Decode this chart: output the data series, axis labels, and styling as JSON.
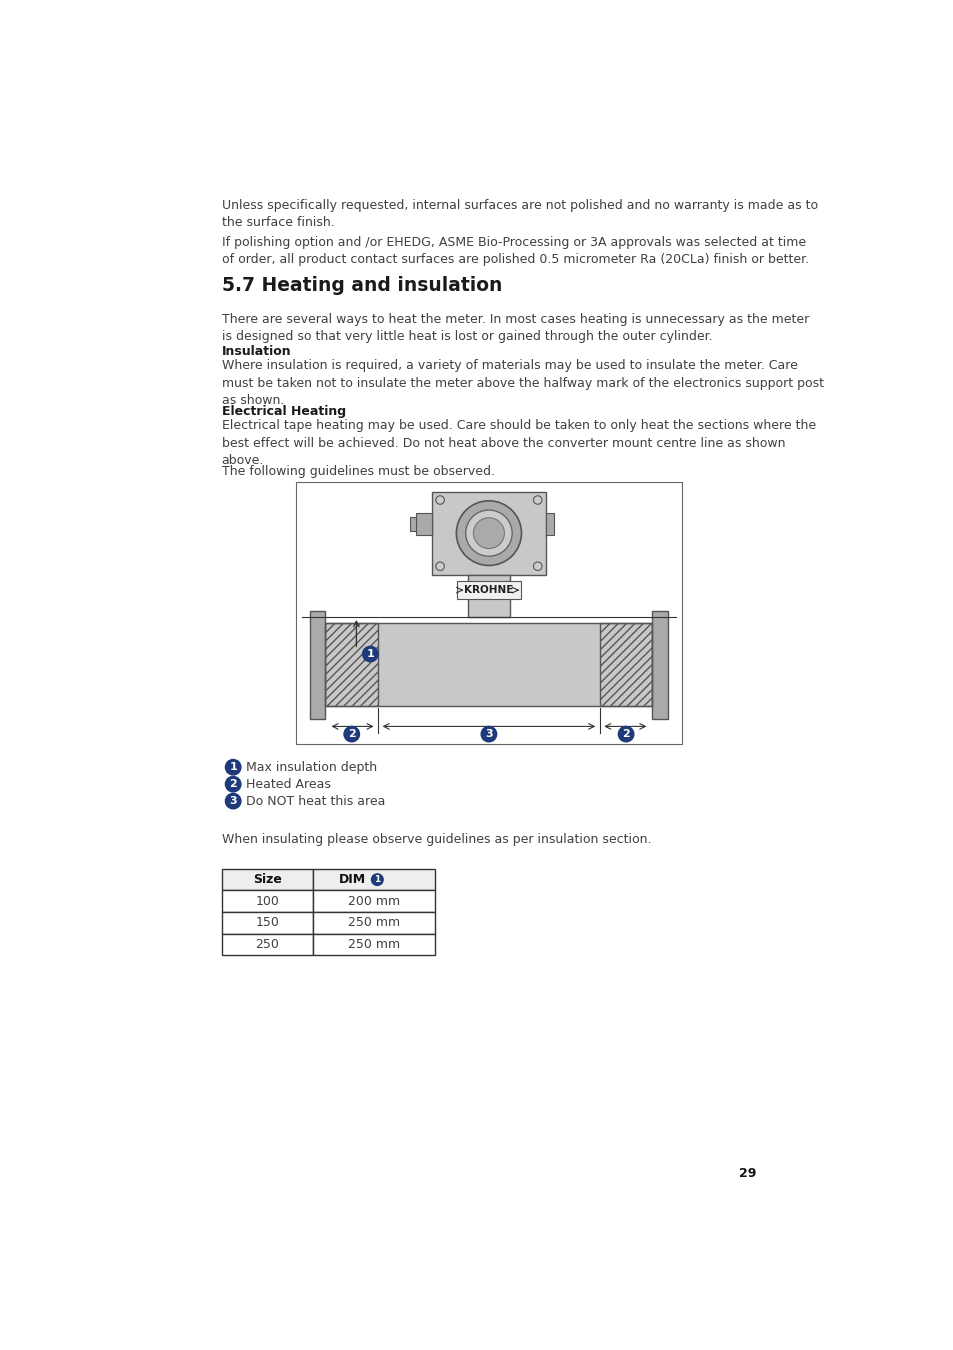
{
  "page_bg": "#ffffff",
  "text_color": "#404040",
  "heading_color": "#1a1a1a",
  "blue_circle_color": "#1e3a7a",
  "para1": "Unless specifically requested, internal surfaces are not polished and no warranty is made as to\nthe surface finish.",
  "para2": "If polishing option and /or EHEDG, ASME Bio-Processing or 3A approvals was selected at time\nof order, all product contact surfaces are polished 0.5 micrometer Ra (20CLa) finish or better.",
  "section_title": "5.7 Heating and insulation",
  "para3": "There are several ways to heat the meter. In most cases heating is unnecessary as the meter\nis designed so that very little heat is lost or gained through the outer cylinder.",
  "sub1_title": "Insulation",
  "para4": "Where insulation is required, a variety of materials may be used to insulate the meter. Care\nmust be taken not to insulate the meter above the halfway mark of the electronics support post\nas shown.",
  "sub2_title": "Electrical Heating",
  "para5": "Electrical tape heating may be used. Care should be taken to only heat the sections where the\nbest effect will be achieved. Do not heat above the converter mount centre line as shown\nabove.",
  "para6": "The following guidelines must be observed.",
  "legend1": "Max insulation depth",
  "legend2": "Heated Areas",
  "legend3": "Do NOT heat this area",
  "para7": "When insulating please observe guidelines as per insulation section.",
  "table_col1_header": "Size",
  "table_col2_header": "DIM",
  "table_rows": [
    [
      "100",
      "200 mm"
    ],
    [
      "150",
      "250 mm"
    ],
    [
      "250",
      "250 mm"
    ]
  ],
  "page_number": "29",
  "body_fs": 9.0,
  "section_fs": 13.5,
  "sub_fs": 9.0,
  "gray_light": "#cccccc",
  "gray_mid": "#aaaaaa",
  "gray_body": "#c8c8c8"
}
